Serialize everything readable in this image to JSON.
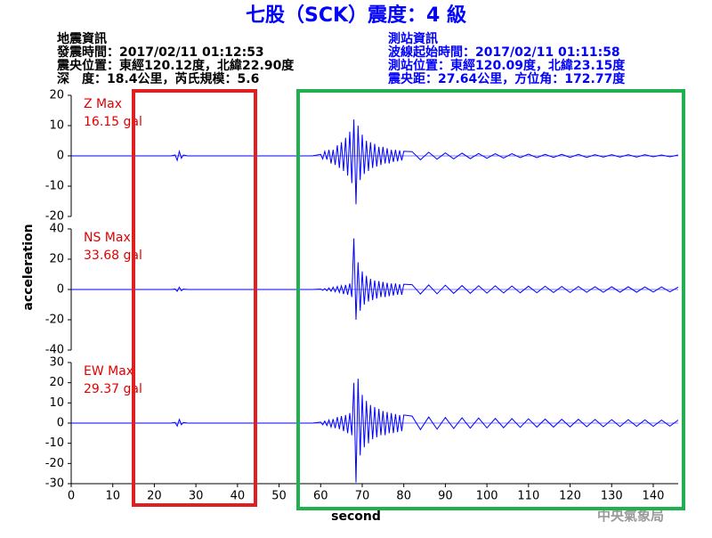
{
  "header": {
    "title": "七股（SCK）震度：4 級",
    "left": [
      "地震資訊",
      "發震時間：2017/02/11 01:12:53",
      "震央位置：東經120.12度，北緯22.90度",
      "深　度：18.4公里，芮氏規模：5.6"
    ],
    "right": [
      "測站資訊",
      "波線起始時間：2017/02/11 01:11:58",
      "測站位置：東經120.09度，北緯23.15度",
      "震央距：27.64公里，方位角：172.77度"
    ],
    "y_label": "acceleration",
    "x_label": "second",
    "footer": "中央氣象局"
  },
  "chart_data": [
    {
      "type": "line",
      "label": "Z Max",
      "max_label": "16.15 gal",
      "color": "#0000ff",
      "xlim": [
        0,
        146
      ],
      "ylim": [
        -20,
        20
      ],
      "yticks": [
        -20,
        -10,
        0,
        10,
        20
      ],
      "x": [
        0,
        24,
        25,
        25.5,
        26,
        26.5,
        27,
        28,
        58,
        60,
        60.5,
        61,
        61.5,
        62,
        62.5,
        63,
        63.5,
        64,
        64.5,
        65,
        65.5,
        66,
        66.5,
        67,
        67.5,
        68,
        68.5,
        69,
        69.5,
        70,
        70.5,
        71,
        71.5,
        72,
        72.5,
        73,
        73.5,
        74,
        74.5,
        75,
        75.5,
        76,
        76.5,
        77,
        77.5,
        78,
        78.5,
        79,
        79.5,
        80,
        82,
        84,
        86,
        88,
        90,
        92,
        94,
        96,
        98,
        100,
        102,
        104,
        106,
        108,
        110,
        112,
        114,
        116,
        118,
        120,
        122,
        124,
        126,
        128,
        130,
        132,
        134,
        136,
        138,
        140,
        142,
        144,
        146
      ],
      "values": [
        0,
        0,
        0.3,
        -1.5,
        1.5,
        -0.8,
        0.3,
        0,
        0,
        0.5,
        -1,
        1.5,
        -1.2,
        2,
        -2.5,
        2,
        -3,
        3.5,
        -4,
        4.5,
        -5,
        6,
        -6.5,
        8,
        -9,
        12,
        -16,
        10,
        -8,
        7,
        -6,
        5,
        -5,
        4.5,
        -4,
        4,
        -3.5,
        3,
        -3,
        3,
        -2.5,
        2.5,
        -2.5,
        2,
        -2,
        2,
        -1.8,
        1.8,
        -1.5,
        1.5,
        1.4,
        -1.3,
        1.2,
        -1.1,
        1,
        -1,
        0.9,
        -0.9,
        0.8,
        -0.8,
        0.7,
        -0.7,
        0.7,
        -0.6,
        0.6,
        -0.6,
        0.5,
        -0.5,
        0.5,
        -0.5,
        0.5,
        -0.5,
        0.4,
        -0.4,
        0.4,
        -0.4,
        0.4,
        -0.4,
        0.4,
        -0.3,
        0.3,
        -0.3,
        0.3
      ]
    },
    {
      "type": "line",
      "label": "NS Max",
      "max_label": "33.68 gal",
      "color": "#0000ff",
      "xlim": [
        0,
        146
      ],
      "ylim": [
        -40,
        40
      ],
      "yticks": [
        -40,
        -20,
        0,
        20,
        40
      ],
      "x": [
        0,
        24,
        25,
        25.5,
        26,
        26.5,
        27,
        28,
        58,
        60,
        60.5,
        61,
        61.5,
        62,
        62.5,
        63,
        63.5,
        64,
        64.5,
        65,
        65.5,
        66,
        66.5,
        67,
        67.5,
        68,
        68.5,
        69,
        69.5,
        70,
        70.5,
        71,
        71.5,
        72,
        72.5,
        73,
        73.5,
        74,
        74.5,
        75,
        75.5,
        76,
        76.5,
        77,
        77.5,
        78,
        78.5,
        79,
        79.5,
        80,
        82,
        84,
        86,
        88,
        90,
        92,
        94,
        96,
        98,
        100,
        102,
        104,
        106,
        108,
        110,
        112,
        114,
        116,
        118,
        120,
        122,
        124,
        126,
        128,
        130,
        132,
        134,
        136,
        138,
        140,
        142,
        144,
        146
      ],
      "values": [
        0,
        0,
        0.3,
        -1.2,
        1.5,
        -0.8,
        0.3,
        0,
        0,
        0.3,
        -0.5,
        0.6,
        -0.8,
        1,
        -1.2,
        1.5,
        -1.5,
        2,
        -2,
        2.5,
        -3,
        3,
        -3.5,
        4,
        -5,
        33.68,
        -20,
        18,
        -14,
        12,
        -10,
        9,
        -8,
        7,
        -7,
        6,
        -6,
        5.5,
        -5,
        5,
        -5,
        4.5,
        -4.5,
        4,
        -4,
        4,
        -3.5,
        3.5,
        -3.5,
        3.5,
        3.2,
        -3,
        3,
        -2.8,
        2.8,
        -2.6,
        2.6,
        -2.5,
        2.5,
        -2.4,
        2.4,
        -2.3,
        2.3,
        -2.2,
        2.2,
        -2.1,
        2.1,
        -2,
        2,
        -2,
        2,
        -1.9,
        1.9,
        -1.9,
        1.8,
        -1.8,
        1.8,
        -1.8,
        1.7,
        -1.7,
        1.7,
        -1.6,
        1.6
      ]
    },
    {
      "type": "line",
      "label": "EW Max",
      "max_label": "29.37 gal",
      "color": "#0000ff",
      "xlim": [
        0,
        146
      ],
      "ylim": [
        -30,
        30
      ],
      "yticks": [
        -30,
        -20,
        -10,
        0,
        10,
        20,
        30
      ],
      "xticks": [
        0,
        10,
        20,
        30,
        40,
        50,
        60,
        70,
        80,
        90,
        100,
        110,
        120,
        130,
        140
      ],
      "x": [
        0,
        24,
        25,
        25.5,
        26,
        26.5,
        27,
        28,
        58,
        60,
        60.5,
        61,
        61.5,
        62,
        62.5,
        63,
        63.5,
        64,
        64.5,
        65,
        65.5,
        66,
        66.5,
        67,
        67.5,
        68,
        68.5,
        69,
        69.5,
        70,
        70.5,
        71,
        71.5,
        72,
        72.5,
        73,
        73.5,
        74,
        74.5,
        75,
        75.5,
        76,
        76.5,
        77,
        77.5,
        78,
        78.5,
        79,
        79.5,
        80,
        82,
        84,
        86,
        88,
        90,
        92,
        94,
        96,
        98,
        100,
        102,
        104,
        106,
        108,
        110,
        112,
        114,
        116,
        118,
        120,
        122,
        124,
        126,
        128,
        130,
        132,
        134,
        136,
        138,
        140,
        142,
        144,
        146
      ],
      "values": [
        0,
        0,
        0.3,
        -1.5,
        1.8,
        -0.8,
        0.3,
        0,
        0,
        0.5,
        -0.8,
        1,
        -1.2,
        1.5,
        -2,
        2,
        -2.5,
        3,
        -3,
        3.5,
        -4,
        4,
        -5,
        5,
        -6,
        20,
        -29.37,
        22,
        -16,
        14,
        -12,
        11,
        -10,
        9,
        -8,
        8,
        -7,
        7,
        -6,
        6,
        -6,
        5.5,
        -5,
        5,
        -5,
        4.5,
        -4.5,
        4,
        -4,
        4,
        3.5,
        -3.2,
        3,
        -3,
        2.8,
        -2.7,
        2.6,
        -2.5,
        2.5,
        -2.4,
        2.3,
        -2.3,
        2.2,
        -2.1,
        2.1,
        -2,
        2,
        -2,
        1.9,
        -1.9,
        1.9,
        -1.8,
        1.8,
        -1.8,
        1.7,
        -1.7,
        1.7,
        -1.6,
        1.6,
        -1.6,
        1.5,
        -1.5,
        1.5
      ]
    }
  ]
}
